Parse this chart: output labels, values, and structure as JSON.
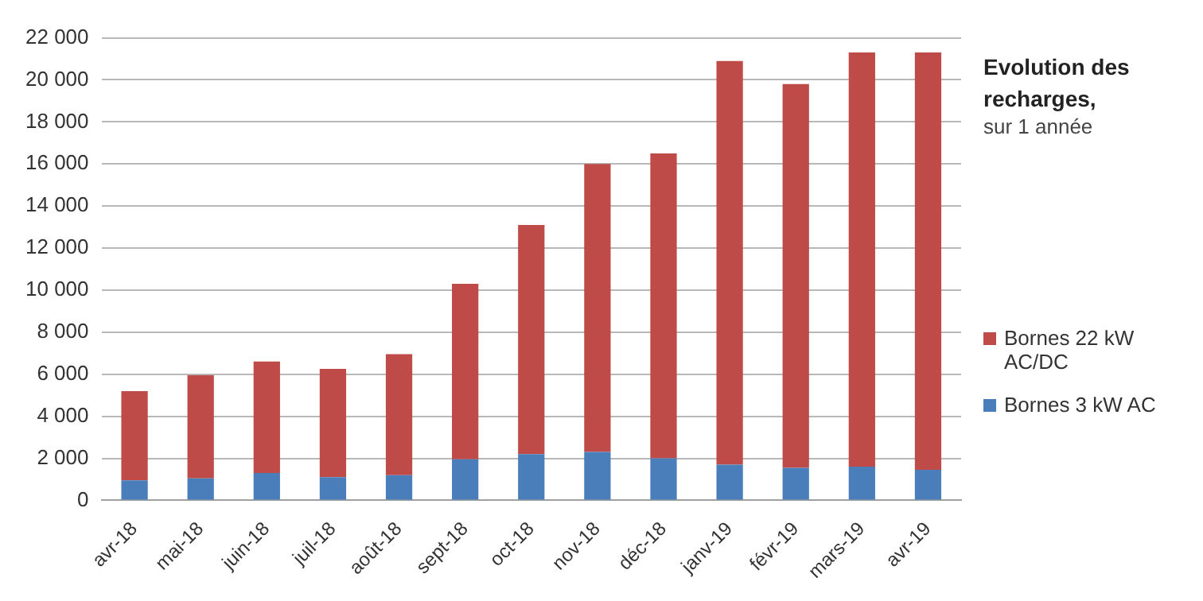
{
  "chart_data": {
    "type": "bar",
    "title": "Evolution des recharges,",
    "subtitle": "sur 1 année",
    "stacked": true,
    "categories": [
      "avr-18",
      "mai-18",
      "juin-18",
      "juil-18",
      "août-18",
      "sept-18",
      "oct-18",
      "nov-18",
      "déc-18",
      "janv-19",
      "févr-19",
      "mars-19",
      "avr-19"
    ],
    "series": [
      {
        "name": "Bornes 3 kW AC",
        "color": "#4a7ebb",
        "values": [
          950,
          1050,
          1300,
          1100,
          1200,
          1950,
          2200,
          2300,
          2000,
          1700,
          1550,
          1600,
          1450
        ]
      },
      {
        "name": "Bornes 22 kW AC/DC",
        "color": "#be4b48",
        "values": [
          4250,
          4900,
          5300,
          5150,
          5750,
          8350,
          10900,
          13700,
          14500,
          19200,
          18250,
          19700,
          19850
        ]
      }
    ],
    "ylim": [
      0,
      22000
    ],
    "yticks": [
      {
        "value": 0,
        "label": "0"
      },
      {
        "value": 2000,
        "label": "2 000"
      },
      {
        "value": 4000,
        "label": "4 000"
      },
      {
        "value": 6000,
        "label": "6 000"
      },
      {
        "value": 8000,
        "label": "8 000"
      },
      {
        "value": 10000,
        "label": "10 000"
      },
      {
        "value": 12000,
        "label": "12 000"
      },
      {
        "value": 14000,
        "label": "14 000"
      },
      {
        "value": 16000,
        "label": "16 000"
      },
      {
        "value": 18000,
        "label": "18 000"
      },
      {
        "value": 20000,
        "label": "20 000"
      },
      {
        "value": 22000,
        "label": "22 000"
      }
    ],
    "grid": "y",
    "legend": "right"
  }
}
